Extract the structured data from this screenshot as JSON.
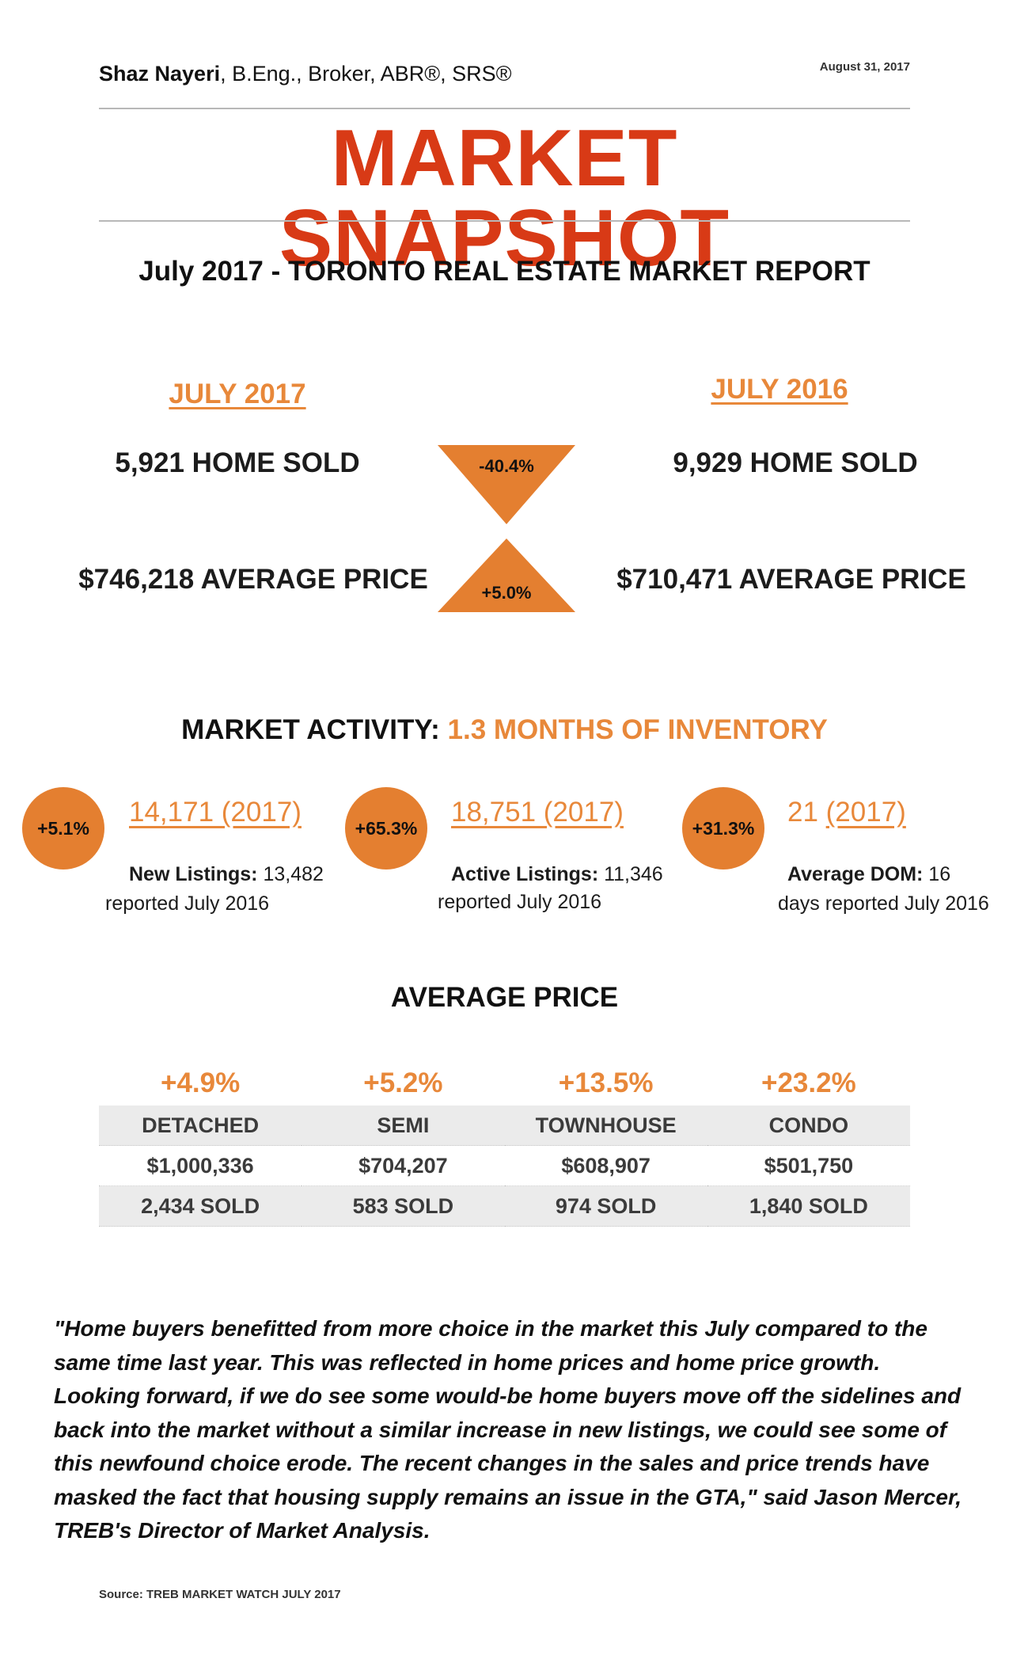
{
  "header": {
    "author_name": "Shaz Nayeri",
    "author_credentials": ", B.Eng., Broker, ABR®, SRS®",
    "date": "August 31, 2017",
    "title": "MARKET SNAPSHOT",
    "subtitle": "July 2017 - TORONTO REAL ESTATE MARKET REPORT"
  },
  "comparison": {
    "left_year": "JULY 2017",
    "right_year": "JULY 2016",
    "left_sold": "5,921 HOME SOLD",
    "right_sold": "9,929 HOME SOLD",
    "sold_change": "-40.4%",
    "left_price": "$746,218 AVERAGE PRICE",
    "right_price": "$710,471 AVERAGE  PRICE",
    "price_change": "+5.0%",
    "accent_color": "#e8883a"
  },
  "activity": {
    "label": "MARKET ACTIVITY: ",
    "value": "1.3 MONTHS OF INVENTORY",
    "stats": [
      {
        "change": "+5.1%",
        "value": "14,171 (2017)",
        "desc_bold": "New Listings:",
        "desc_line1": " 13,482",
        "desc_line2": "reported July 2016"
      },
      {
        "change": "+65.3%",
        "value": "18,751 (2017)",
        "desc_bold": "Active Listings:",
        "desc_line1": " 11,346",
        "desc_line2": "reported July 2016"
      },
      {
        "change": "+31.3%",
        "value_num": "21 ",
        "value_year": "(2017)",
        "desc_bold": "Average DOM:",
        "desc_line1": " 16",
        "desc_line2": "days reported July 2016"
      }
    ]
  },
  "average_price": {
    "heading": "AVERAGE PRICE",
    "changes": [
      "+4.9%",
      "+5.2%",
      "+13.5%",
      "+23.2%"
    ],
    "types": [
      "DETACHED",
      "SEMI",
      "TOWNHOUSE",
      "CONDO"
    ],
    "prices": [
      "$1,000,336",
      "$704,207",
      "$608,907",
      "$501,750"
    ],
    "sold": [
      "2,434 SOLD",
      "583 SOLD",
      "974 SOLD",
      "1,840 SOLD"
    ]
  },
  "quote": "\"Home buyers benefitted from more choice in the market this July compared to the same time last year. This was reflected in home prices and home price growth. Looking forward, if we do see some would-be home buyers move off the sidelines and back into the market without a similar increase in new listings, we could see some of this newfound choice erode. The recent changes in the sales and price trends have masked the fact that housing supply remains an issue in the GTA,\" said Jason Mercer, TREB's Director of Market Analysis.",
  "source": "Source: TREB MARKET WATCH JULY 2017"
}
